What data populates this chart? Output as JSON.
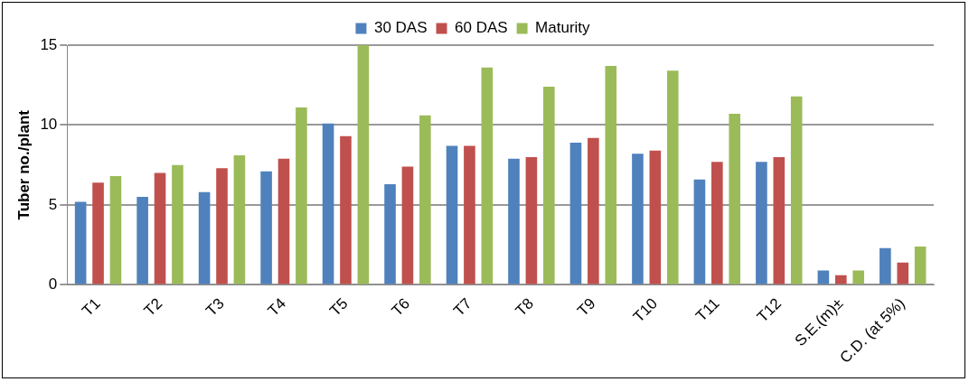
{
  "chart_data": {
    "type": "bar",
    "ylabel": "Tuber no./plant",
    "categories": [
      "T1",
      "T2",
      "T3",
      "T4",
      "T5",
      "T6",
      "T7",
      "T8",
      "T9",
      "T10",
      "T11",
      "T12",
      "S.E.(m)±",
      "C.D. (at 5%)"
    ],
    "series": [
      {
        "name": "30 DAS",
        "color": "#4f81bd",
        "values": [
          5.2,
          5.5,
          5.8,
          7.1,
          10.1,
          6.3,
          8.7,
          7.9,
          8.9,
          8.2,
          6.6,
          7.7,
          0.9,
          2.3
        ]
      },
      {
        "name": "60 DAS",
        "color": "#c0504d",
        "values": [
          6.4,
          7.0,
          7.3,
          7.9,
          9.3,
          7.4,
          8.7,
          8.0,
          9.2,
          8.4,
          7.7,
          8.0,
          0.6,
          1.4
        ]
      },
      {
        "name": "Maturity",
        "color": "#9bbb59",
        "values": [
          6.8,
          7.5,
          8.1,
          11.1,
          15.0,
          10.6,
          13.6,
          12.4,
          13.7,
          13.4,
          10.7,
          11.8,
          0.9,
          2.4
        ]
      }
    ],
    "ylim": [
      0,
      15
    ],
    "yticks": [
      0,
      5,
      10,
      15
    ],
    "grid": "y",
    "legend": "top"
  }
}
